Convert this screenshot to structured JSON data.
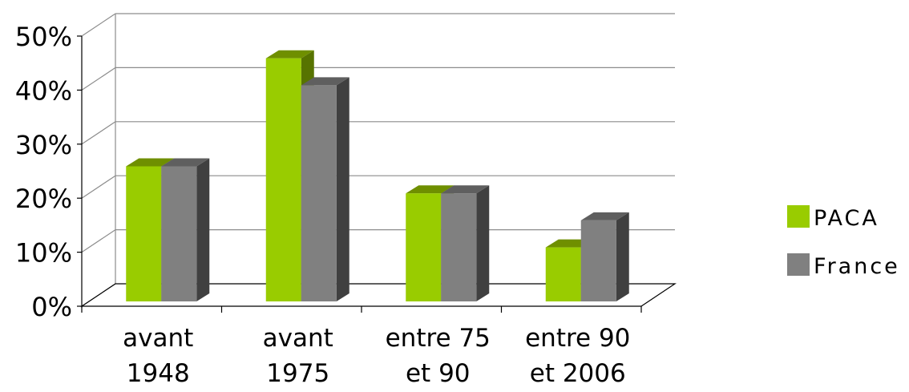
{
  "chart_data": {
    "type": "bar",
    "categories": [
      [
        "avant",
        "1948"
      ],
      [
        "avant",
        "1975"
      ],
      [
        "entre 75",
        "et 90"
      ],
      [
        "entre 90",
        "et 2006"
      ]
    ],
    "series": [
      {
        "name": "PACA",
        "values": [
          25,
          45,
          20,
          10
        ],
        "color": "#99cc00",
        "top_color": "#6f8f00",
        "side_color": "#577300"
      },
      {
        "name": "France",
        "values": [
          25,
          40,
          20,
          15
        ],
        "color": "#808080",
        "top_color": "#5f5f5f",
        "side_color": "#404040"
      }
    ],
    "yticks": [
      "0%",
      "10%",
      "20%",
      "30%",
      "40%",
      "50%"
    ],
    "ylim": [
      0,
      50
    ],
    "y_unit": "%",
    "grid": true,
    "legend_position": "right",
    "title": "",
    "xlabel": "",
    "ylabel": ""
  }
}
